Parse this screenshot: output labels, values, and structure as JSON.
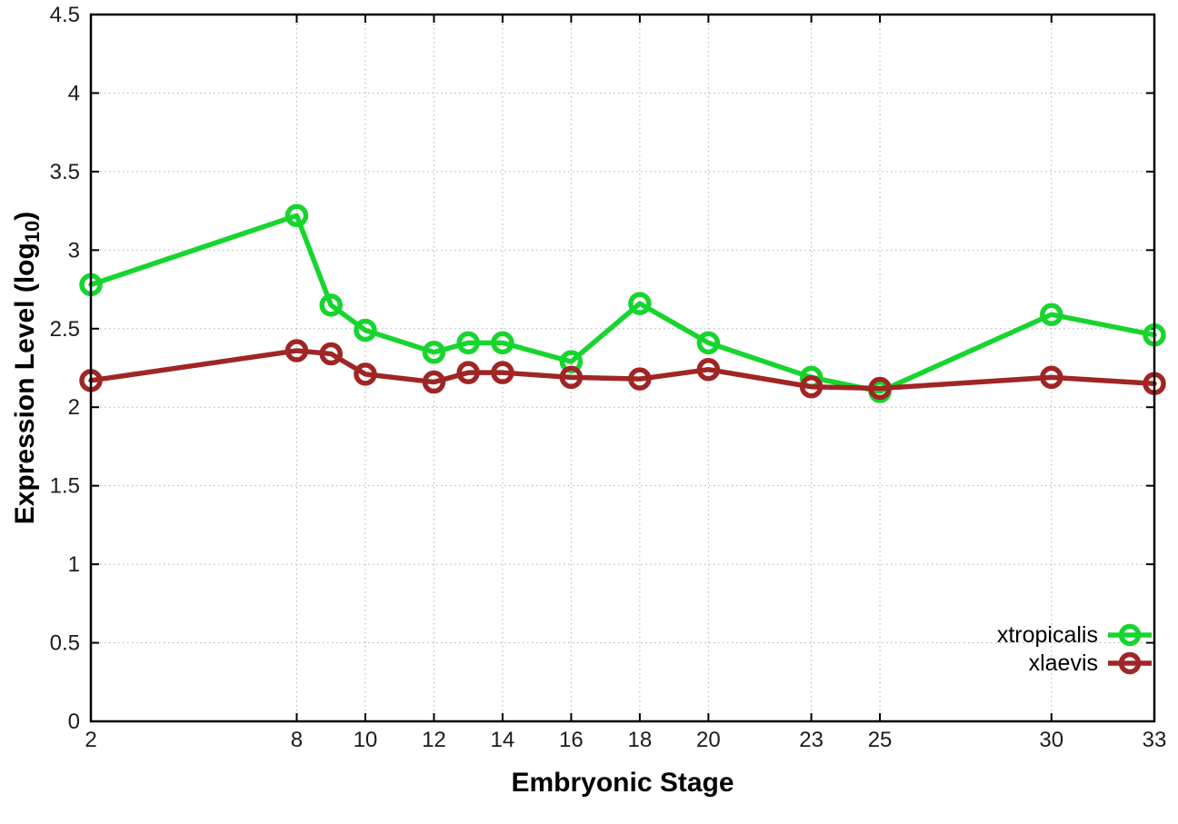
{
  "chart_data": {
    "type": "line",
    "title": "",
    "xlabel": "Embryonic Stage",
    "ylabel": "Expression Level (log10)",
    "ylabel_prefix": "Expression Level (log",
    "ylabel_sub": "10",
    "ylabel_suffix": ")",
    "x": [
      2,
      8,
      9,
      10,
      12,
      13,
      14,
      16,
      18,
      20,
      23,
      25,
      30,
      33
    ],
    "series": [
      {
        "name": "xtropicalis",
        "color": "#17d52e",
        "values": [
          2.78,
          3.22,
          2.65,
          2.49,
          2.35,
          2.41,
          2.41,
          2.29,
          2.66,
          2.41,
          2.19,
          2.1,
          2.59,
          2.46
        ]
      },
      {
        "name": "xlaevis",
        "color": "#a02525",
        "values": [
          2.17,
          2.36,
          2.34,
          2.21,
          2.16,
          2.22,
          2.22,
          2.19,
          2.18,
          2.24,
          2.13,
          2.12,
          2.19,
          2.15
        ]
      }
    ],
    "x_tick_labels": [
      "2",
      "8",
      "10",
      "12",
      "14",
      "16",
      "18",
      "20",
      "23",
      "25",
      "30",
      "33"
    ],
    "x_tick_values": [
      2,
      8,
      10,
      12,
      14,
      16,
      18,
      20,
      23,
      25,
      30,
      33
    ],
    "y_tick_labels": [
      "0",
      "0.5",
      "1",
      "1.5",
      "2",
      "2.5",
      "3",
      "3.5",
      "4",
      "4.5"
    ],
    "y_tick_values": [
      0,
      0.5,
      1,
      1.5,
      2,
      2.5,
      3,
      3.5,
      4,
      4.5
    ],
    "xlim": [
      2,
      33
    ],
    "ylim": [
      0,
      4.5
    ],
    "grid": true,
    "grid_style": "dotted",
    "legend_position": "bottom-right",
    "marker": "open-circle",
    "border_color": "#000000",
    "grid_color": "#b3b3b3",
    "tick_label_color": "#1c1c1c"
  }
}
